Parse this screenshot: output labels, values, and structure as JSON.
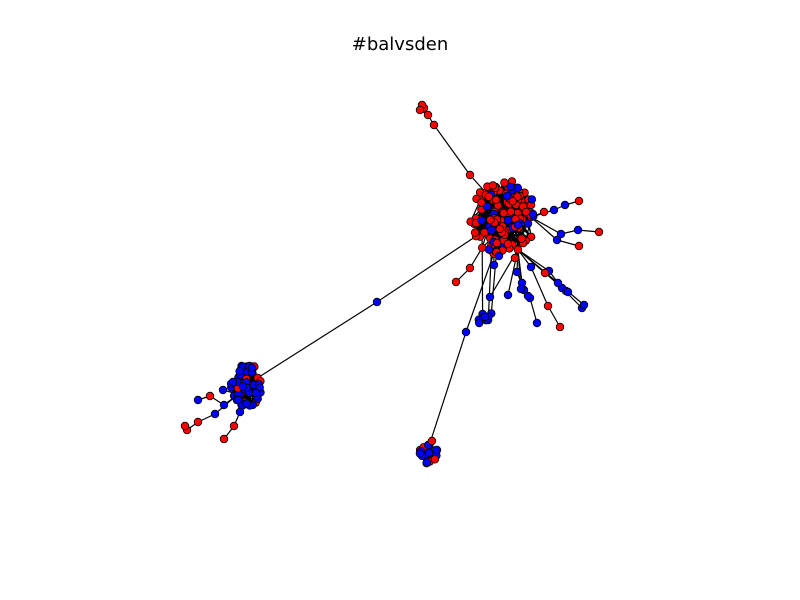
{
  "figure": {
    "title": "#balvsden"
  },
  "legend_colors": {
    "group_a": "#ff0000",
    "group_b": "#0000ff",
    "edge": "#000000"
  }
}
